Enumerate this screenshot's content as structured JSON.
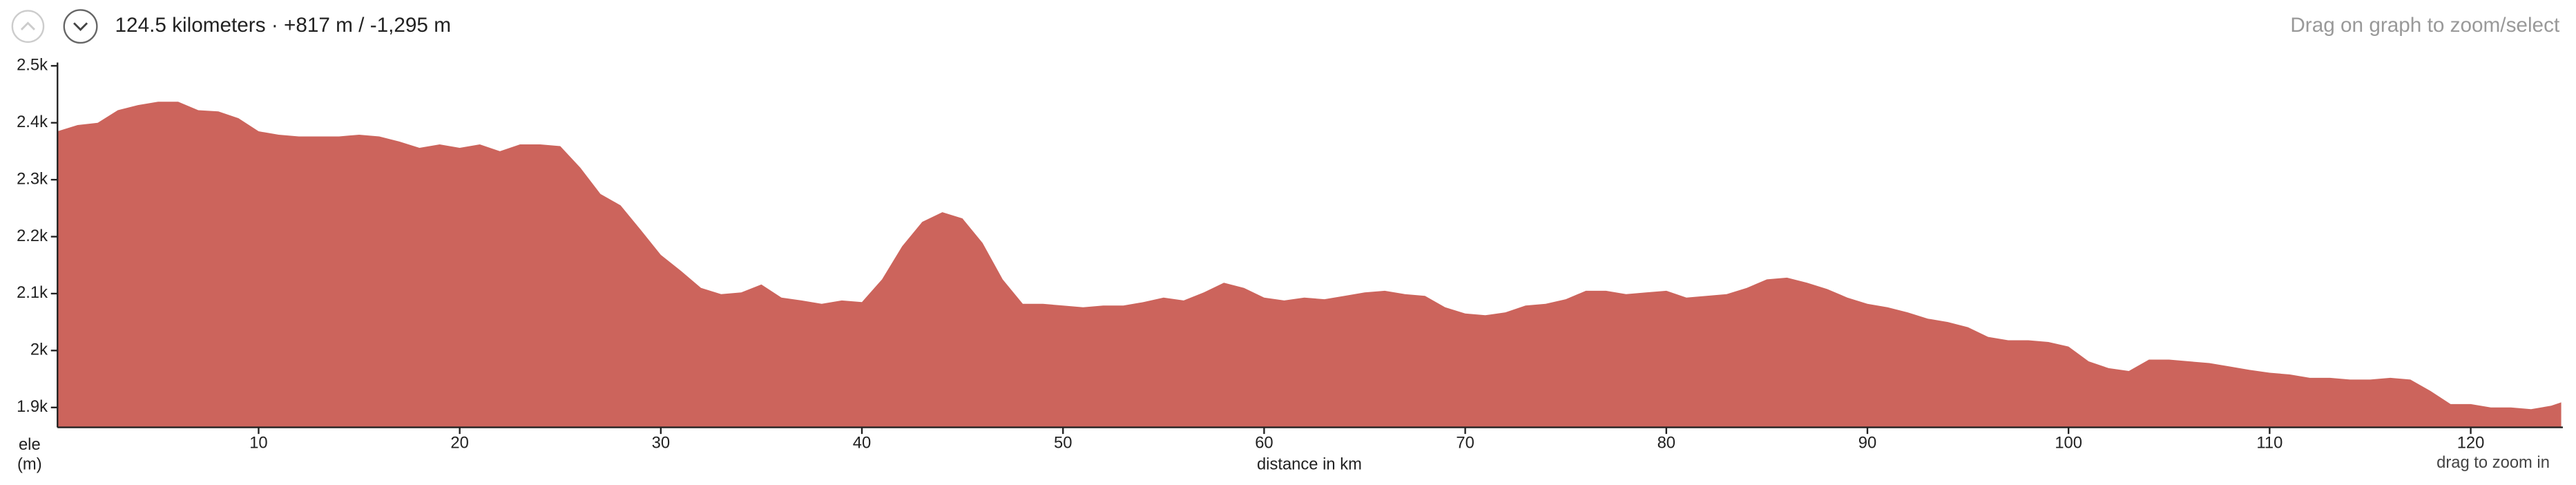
{
  "header": {
    "summary": "124.5 kilometers · +817 m / -1,295 m",
    "hint": "Drag on graph to zoom/select"
  },
  "chart_data": {
    "type": "area",
    "xlabel": "distance in km",
    "ylabel_lines": [
      "ele",
      "(m)"
    ],
    "zoom_hint": "drag to zoom in",
    "color": "#cc645c",
    "xlim": [
      0,
      124.5
    ],
    "ylim": [
      1865,
      2500
    ],
    "xticks": [
      10,
      20,
      30,
      40,
      50,
      60,
      70,
      80,
      90,
      100,
      110,
      120
    ],
    "yticks": [
      {
        "value": 1900,
        "label": "1.9k"
      },
      {
        "value": 2000,
        "label": "2k"
      },
      {
        "value": 2100,
        "label": "2.1k"
      },
      {
        "value": 2200,
        "label": "2.2k"
      },
      {
        "value": 2300,
        "label": "2.3k"
      },
      {
        "value": 2400,
        "label": "2.4k"
      },
      {
        "value": 2500,
        "label": "2.5k"
      }
    ],
    "x": [
      0,
      1,
      2,
      3,
      4,
      5,
      6,
      7,
      8,
      9,
      10,
      11,
      12,
      13,
      14,
      15,
      16,
      17,
      18,
      19,
      20,
      21,
      22,
      23,
      24,
      25,
      26,
      27,
      28,
      29,
      30,
      31,
      32,
      33,
      34,
      35,
      36,
      37,
      38,
      39,
      40,
      41,
      42,
      43,
      44,
      45,
      46,
      47,
      48,
      49,
      50,
      51,
      52,
      53,
      54,
      55,
      56,
      57,
      58,
      59,
      60,
      61,
      62,
      63,
      64,
      65,
      66,
      67,
      68,
      69,
      70,
      71,
      72,
      73,
      74,
      75,
      76,
      77,
      78,
      79,
      80,
      81,
      82,
      83,
      84,
      85,
      86,
      87,
      88,
      89,
      90,
      91,
      92,
      93,
      94,
      95,
      96,
      97,
      98,
      99,
      100,
      101,
      102,
      103,
      104,
      105,
      106,
      107,
      108,
      109,
      110,
      111,
      112,
      113,
      114,
      115,
      116,
      117,
      118,
      119,
      120,
      121,
      122,
      123,
      124,
      124.5
    ],
    "values": [
      2385,
      2396,
      2400,
      2422,
      2431,
      2437,
      2437,
      2422,
      2420,
      2408,
      2385,
      2379,
      2376,
      2376,
      2376,
      2379,
      2376,
      2367,
      2356,
      2362,
      2356,
      2362,
      2350,
      2362,
      2362,
      2359,
      2321,
      2275,
      2255,
      2212,
      2168,
      2140,
      2110,
      2099,
      2102,
      2116,
      2093,
      2088,
      2082,
      2088,
      2085,
      2125,
      2183,
      2226,
      2243,
      2232,
      2189,
      2125,
      2082,
      2082,
      2079,
      2076,
      2079,
      2079,
      2085,
      2093,
      2088,
      2102,
      2119,
      2110,
      2093,
      2088,
      2093,
      2090,
      2096,
      2102,
      2105,
      2099,
      2096,
      2076,
      2065,
      2062,
      2067,
      2079,
      2082,
      2090,
      2105,
      2105,
      2099,
      2102,
      2105,
      2093,
      2096,
      2099,
      2110,
      2125,
      2128,
      2119,
      2108,
      2093,
      2082,
      2076,
      2067,
      2056,
      2050,
      2041,
      2024,
      2018,
      2018,
      2015,
      2007,
      1981,
      1969,
      1964,
      1984,
      1984,
      1981,
      1978,
      1972,
      1966,
      1961,
      1958,
      1952,
      1952,
      1949,
      1949,
      1952,
      1949,
      1929,
      1906,
      1906,
      1900,
      1900,
      1897,
      1903,
      1909
    ]
  }
}
